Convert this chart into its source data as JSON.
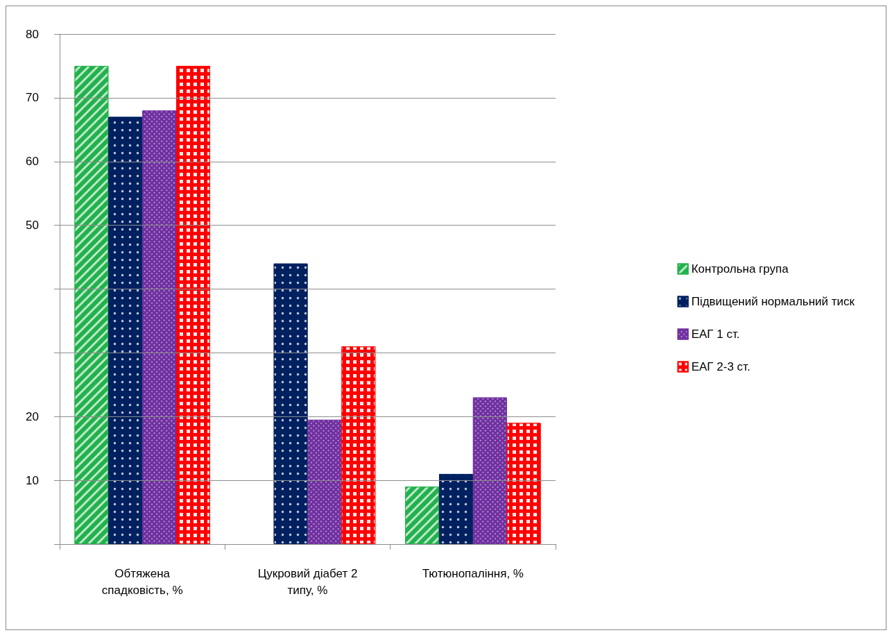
{
  "chart_data": {
    "type": "bar",
    "categories": [
      "Обтяжена спадковість, %",
      "Цукровий діабет 2 типу, %",
      "Тютюнопаління, %"
    ],
    "series": [
      {
        "name": "Контрольна група",
        "color": "#22b14c",
        "values": [
          75,
          null,
          9
        ]
      },
      {
        "name": "Підвищений нормальний тиск",
        "color": "#002060",
        "values": [
          67,
          44,
          11
        ]
      },
      {
        "name": "ЕАГ 1 ст.",
        "color": "#7030a0",
        "values": [
          68,
          19.5,
          23
        ]
      },
      {
        "name": "ЕАГ 2-3 ст.",
        "color": "#ff0000",
        "values": [
          75,
          31,
          19
        ]
      }
    ],
    "ylim": [
      0,
      80
    ],
    "yticks": [
      {
        "value": 0,
        "label": null
      },
      10,
      20,
      {
        "value": 30,
        "label": null
      },
      {
        "value": 40,
        "label": null
      },
      50,
      60,
      70,
      80
    ],
    "grid": "y",
    "legend": "right"
  }
}
